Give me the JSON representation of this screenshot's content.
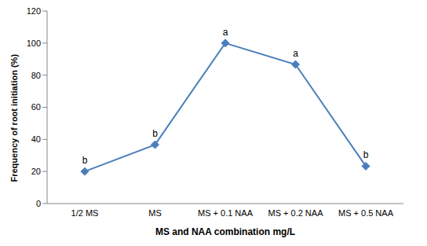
{
  "chart_data": {
    "type": "line",
    "categories": [
      "1/2 MS",
      "MS",
      "MS + 0.1 NAA",
      "MS + 0.2 NAA",
      "MS + 0.5 NAA"
    ],
    "values": [
      20,
      36.7,
      100,
      86.7,
      23.3
    ],
    "annotations": [
      "b",
      "b",
      "a",
      "a",
      "b"
    ],
    "x_label": "MS and NAA combination mg/L",
    "y_label": "Frequency of root initiation (%)",
    "ylim": [
      0,
      120
    ],
    "yticks": [
      0,
      20,
      40,
      60,
      80,
      100,
      120
    ],
    "color": "#4a7ebb",
    "marker": "diamond",
    "grid": false
  }
}
